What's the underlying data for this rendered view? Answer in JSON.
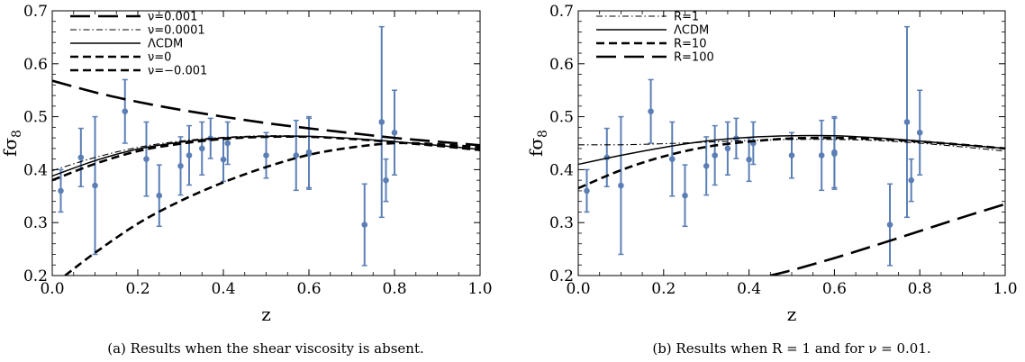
{
  "chart_data": [
    {
      "type": "line",
      "caption": "(a)  Results when the shear viscosity is absent.",
      "xlabel": "z",
      "ylabel": "fσ",
      "ylabel_sub": "8",
      "xlim": [
        0,
        1.0
      ],
      "ylim": [
        0.2,
        0.7
      ],
      "xticks": [
        "0.0",
        "0.2",
        "0.4",
        "0.6",
        "0.8",
        "1.0"
      ],
      "yticks": [
        "0.2",
        "0.3",
        "0.4",
        "0.5",
        "0.6",
        "0.7"
      ],
      "legend_position": "top-left",
      "series": [
        {
          "name": "ν=0.001",
          "style": "longdash",
          "x": [
            0,
            0.1,
            0.2,
            0.3,
            0.4,
            0.5,
            0.6,
            0.7,
            0.8,
            0.9,
            1.0
          ],
          "y": [
            0.568,
            0.546,
            0.528,
            0.513,
            0.5,
            0.488,
            0.478,
            0.469,
            0.46,
            0.453,
            0.446
          ]
        },
        {
          "name": "ν=0.0001",
          "style": "dashdot",
          "x": [
            0,
            0.1,
            0.2,
            0.3,
            0.4,
            0.5,
            0.6,
            0.7,
            0.8,
            0.9,
            1.0
          ],
          "y": [
            0.398,
            0.423,
            0.442,
            0.454,
            0.461,
            0.464,
            0.463,
            0.459,
            0.453,
            0.446,
            0.438
          ]
        },
        {
          "name": "ΛCDM",
          "style": "solid",
          "x": [
            0,
            0.1,
            0.2,
            0.3,
            0.4,
            0.5,
            0.6,
            0.7,
            0.8,
            0.9,
            1.0
          ],
          "y": [
            0.388,
            0.417,
            0.439,
            0.452,
            0.46,
            0.463,
            0.463,
            0.459,
            0.453,
            0.446,
            0.438
          ]
        },
        {
          "name": "ν=0",
          "style": "dashed",
          "x": [
            0,
            0.1,
            0.2,
            0.3,
            0.4,
            0.5,
            0.6,
            0.7,
            0.8,
            0.9,
            1.0
          ],
          "y": [
            0.38,
            0.411,
            0.435,
            0.449,
            0.458,
            0.462,
            0.462,
            0.458,
            0.452,
            0.445,
            0.437
          ]
        },
        {
          "name": "ν=−0.001",
          "style": "dashed",
          "x": [
            0.03,
            0.1,
            0.2,
            0.3,
            0.4,
            0.5,
            0.6,
            0.7,
            0.8,
            0.9,
            1.0
          ],
          "y": [
            0.2,
            0.243,
            0.298,
            0.341,
            0.376,
            0.405,
            0.428,
            0.442,
            0.45,
            0.448,
            0.442
          ]
        }
      ],
      "observations": {
        "x": [
          0.02,
          0.067,
          0.1,
          0.17,
          0.22,
          0.25,
          0.3,
          0.32,
          0.35,
          0.37,
          0.4,
          0.41,
          0.5,
          0.57,
          0.6,
          0.6,
          0.73,
          0.77,
          0.78,
          0.8
        ],
        "y": [
          0.36,
          0.423,
          0.37,
          0.51,
          0.42,
          0.351,
          0.407,
          0.427,
          0.44,
          0.459,
          0.419,
          0.45,
          0.427,
          0.427,
          0.43,
          0.433,
          0.296,
          0.49,
          0.38,
          0.47
        ],
        "err": [
          0.04,
          0.055,
          0.13,
          0.06,
          0.07,
          0.058,
          0.055,
          0.056,
          0.05,
          0.038,
          0.041,
          0.04,
          0.043,
          0.066,
          0.067,
          0.067,
          0.077,
          0.18,
          0.04,
          0.08
        ]
      }
    },
    {
      "type": "line",
      "caption": "(b)  Results when R = 1 and for ν = 0.01.",
      "xlabel": "z",
      "ylabel": "fσ",
      "ylabel_sub": "8",
      "xlim": [
        0,
        1.0
      ],
      "ylim": [
        0.2,
        0.7
      ],
      "xticks": [
        "0.0",
        "0.2",
        "0.4",
        "0.6",
        "0.8",
        "1.0"
      ],
      "yticks": [
        "0.2",
        "0.3",
        "0.4",
        "0.5",
        "0.6",
        "0.7"
      ],
      "legend_position": "top-left",
      "series": [
        {
          "name": "R=1",
          "style": "dashdot",
          "x": [
            0,
            0.1,
            0.2,
            0.3,
            0.4,
            0.5,
            0.6,
            0.7,
            0.8,
            0.9,
            1.0
          ],
          "y": [
            0.447,
            0.447,
            0.449,
            0.452,
            0.455,
            0.457,
            0.457,
            0.455,
            0.45,
            0.443,
            0.435
          ]
        },
        {
          "name": "ΛCDM",
          "style": "solid",
          "x": [
            0,
            0.1,
            0.2,
            0.3,
            0.4,
            0.5,
            0.6,
            0.7,
            0.8,
            0.9,
            1.0
          ],
          "y": [
            0.41,
            0.427,
            0.442,
            0.454,
            0.461,
            0.464,
            0.464,
            0.46,
            0.454,
            0.447,
            0.44
          ]
        },
        {
          "name": "R=10",
          "style": "dashed",
          "x": [
            0,
            0.1,
            0.2,
            0.3,
            0.4,
            0.5,
            0.6,
            0.7,
            0.8,
            0.9,
            1.0
          ],
          "y": [
            0.365,
            0.399,
            0.425,
            0.443,
            0.453,
            0.459,
            0.46,
            0.458,
            0.453,
            0.447,
            0.44
          ]
        },
        {
          "name": "R=100",
          "style": "longdash",
          "x": [
            0.45,
            0.5,
            0.6,
            0.7,
            0.8,
            0.9,
            1.0
          ],
          "y": [
            0.2,
            0.21,
            0.233,
            0.258,
            0.284,
            0.31,
            0.335
          ]
        }
      ],
      "observations": {
        "x": [
          0.02,
          0.067,
          0.1,
          0.17,
          0.22,
          0.25,
          0.3,
          0.32,
          0.35,
          0.37,
          0.4,
          0.41,
          0.5,
          0.57,
          0.6,
          0.6,
          0.73,
          0.77,
          0.78,
          0.8
        ],
        "y": [
          0.36,
          0.423,
          0.37,
          0.51,
          0.42,
          0.351,
          0.407,
          0.427,
          0.44,
          0.459,
          0.419,
          0.45,
          0.427,
          0.427,
          0.43,
          0.433,
          0.296,
          0.49,
          0.38,
          0.47
        ],
        "err": [
          0.04,
          0.055,
          0.13,
          0.06,
          0.07,
          0.058,
          0.055,
          0.056,
          0.05,
          0.038,
          0.041,
          0.04,
          0.043,
          0.066,
          0.067,
          0.067,
          0.077,
          0.18,
          0.04,
          0.08
        ]
      }
    }
  ],
  "colors": {
    "data_points": "#5b7fb5",
    "curves": "#000000"
  }
}
